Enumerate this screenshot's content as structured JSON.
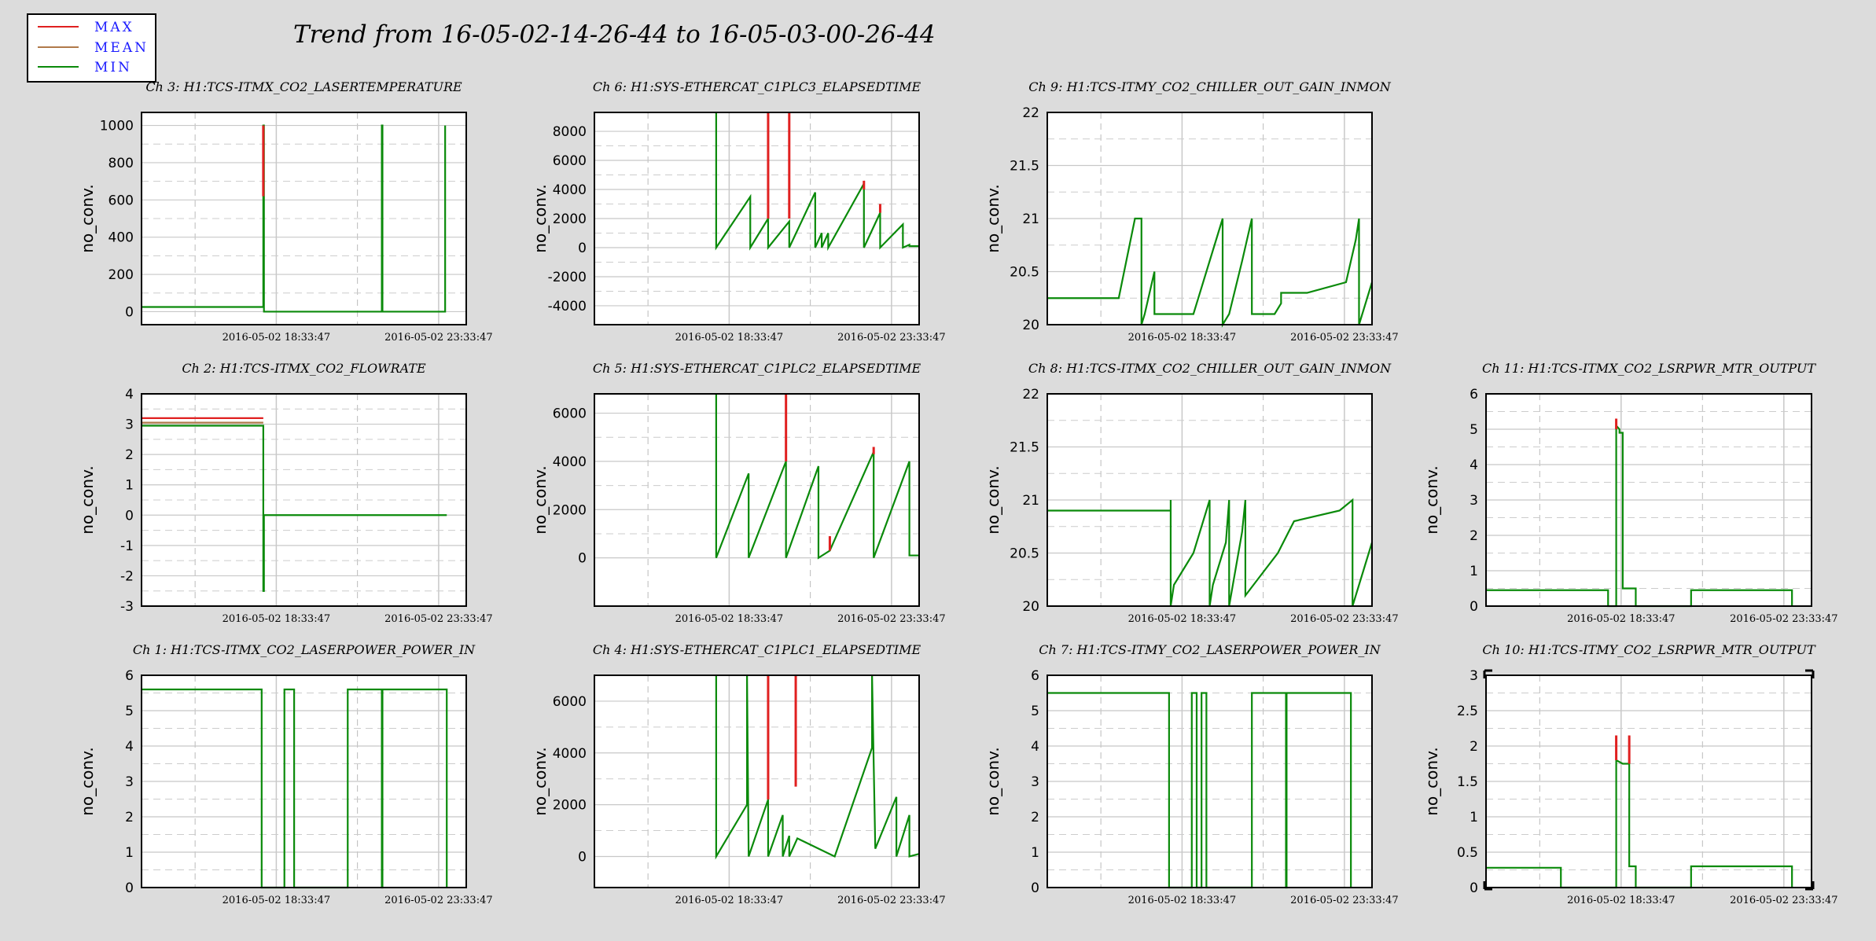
{
  "title": "Trend from 16-05-02-14-26-44 to 16-05-03-00-26-44",
  "legend": [
    {
      "label": "MAX",
      "color": "#e02020"
    },
    {
      "label": "MEAN",
      "color": "#b07a4a"
    },
    {
      "label": "MIN",
      "color": "#0a8a0a"
    }
  ],
  "colors": {
    "max": "#e02020",
    "mean": "#b07a4a",
    "min": "#0a8a0a",
    "grid": "#c8c8c8",
    "background": "#dcdcdc"
  },
  "chart_data": [
    {
      "name": "ch3",
      "type": "line",
      "title": "Ch 3: H1:TCS-ITMX_CO2_LASERTEMPERATURE",
      "ylabel": "no_conv.",
      "xticks": [
        "2016-05-02 18:33:47",
        "2016-05-02 23:33:47"
      ],
      "ylim": [
        -70,
        1070
      ],
      "yticks": [
        0,
        200,
        400,
        600,
        800,
        1000
      ],
      "series": [
        {
          "name": "MIN",
          "x": [
            0,
            0.375,
            0.375,
            0.377,
            0.377,
            0.74,
            0.74,
            0.742,
            0.742,
            0.935,
            0.935
          ],
          "y": [
            25,
            25,
            1000,
            1000,
            0,
            0,
            1000,
            1000,
            0,
            0,
            1000
          ]
        }
      ],
      "spikes": [
        {
          "series": "MAX",
          "x": 0.375,
          "y0": 620,
          "y1": 1000
        }
      ]
    },
    {
      "name": "ch6",
      "type": "line",
      "title": "Ch 6: H1:SYS-ETHERCAT_C1PLC3_ELAPSEDTIME",
      "ylabel": "no_conv.",
      "xticks": [
        "2016-05-02 18:33:47",
        "2016-05-02 23:33:47"
      ],
      "ylim": [
        -5300,
        9300
      ],
      "yticks": [
        -4000,
        -2000,
        0,
        2000,
        4000,
        6000,
        8000
      ],
      "series": [
        {
          "name": "MIN",
          "x": [
            0.375,
            0.375,
            0.375,
            0.48,
            0.48,
            0.535,
            0.535,
            0.6,
            0.6,
            0.68,
            0.68,
            0.7,
            0.7,
            0.72,
            0.72,
            0.83,
            0.83,
            0.88,
            0.88,
            0.95,
            0.95,
            0.97,
            0.97,
            1.0
          ],
          "y": [
            9300,
            0,
            0,
            3500,
            0,
            2000,
            0,
            1800,
            0,
            3800,
            0,
            1000,
            0,
            1000,
            0,
            4400,
            0,
            2400,
            0,
            1600,
            0,
            200,
            100,
            100
          ]
        }
      ],
      "spikes": [
        {
          "series": "MAX",
          "x": 0.535,
          "y0": 2000,
          "y1": 9300
        },
        {
          "series": "MAX",
          "x": 0.6,
          "y0": 2000,
          "y1": 9300
        },
        {
          "series": "MAX",
          "x": 0.83,
          "y0": 4000,
          "y1": 4600
        },
        {
          "series": "MAX",
          "x": 0.88,
          "y0": 2400,
          "y1": 3000
        }
      ]
    },
    {
      "name": "ch9",
      "type": "line",
      "title": "Ch 9: H1:TCS-ITMY_CO2_CHILLER_OUT_GAIN_INMON",
      "ylabel": "no_conv.",
      "xticks": [
        "2016-05-02 18:33:47",
        "2016-05-02 23:33:47"
      ],
      "ylim": [
        20,
        22
      ],
      "yticks": [
        20,
        20.5,
        21,
        21.5,
        22
      ],
      "series": [
        {
          "name": "MIN",
          "x": [
            0,
            0.22,
            0.23,
            0.25,
            0.27,
            0.29,
            0.29,
            0.3,
            0.33,
            0.33,
            0.45,
            0.5,
            0.54,
            0.54,
            0.56,
            0.6,
            0.63,
            0.63,
            0.7,
            0.72,
            0.72,
            0.8,
            0.92,
            0.95,
            0.96,
            0.96,
            0.99,
            1.0
          ],
          "y": [
            20.25,
            20.25,
            20.4,
            20.7,
            21,
            21,
            20,
            20.1,
            20.5,
            20.1,
            20.1,
            20.6,
            21,
            20,
            20.1,
            20.6,
            21,
            20.1,
            20.1,
            20.2,
            20.3,
            20.3,
            20.4,
            20.8,
            21,
            20,
            20.3,
            20.4
          ]
        }
      ],
      "spikes": []
    },
    {
      "name": "ch2",
      "type": "line",
      "title": "Ch 2: H1:TCS-ITMX_CO2_FLOWRATE",
      "ylabel": "no_conv.",
      "xticks": [
        "2016-05-02 18:33:47",
        "2016-05-02 23:33:47"
      ],
      "ylim": [
        -3,
        4
      ],
      "yticks": [
        -3,
        -2,
        -1,
        0,
        1,
        2,
        3,
        4
      ],
      "series": [
        {
          "name": "MAX",
          "x": [
            0,
            0.375
          ],
          "y": [
            3.2,
            3.2
          ]
        },
        {
          "name": "MEAN",
          "x": [
            0,
            0.375
          ],
          "y": [
            3.05,
            3.05
          ]
        },
        {
          "name": "MIN",
          "x": [
            0,
            0.375,
            0.375,
            0.377,
            0.377,
            0.94
          ],
          "y": [
            2.95,
            2.95,
            -2.5,
            -2.5,
            0,
            0
          ]
        }
      ],
      "spikes": []
    },
    {
      "name": "ch5",
      "type": "line",
      "title": "Ch 5: H1:SYS-ETHERCAT_C1PLC2_ELAPSEDTIME",
      "ylabel": "no_conv.",
      "xticks": [
        "2016-05-02 18:33:47",
        "2016-05-02 23:33:47"
      ],
      "ylim": [
        -2000,
        6800
      ],
      "yticks": [
        0,
        2000,
        4000,
        6000
      ],
      "series": [
        {
          "name": "MIN",
          "x": [
            0.375,
            0.375,
            0.375,
            0.475,
            0.475,
            0.59,
            0.59,
            0.69,
            0.69,
            0.725,
            0.725,
            0.86,
            0.86,
            0.97,
            0.97,
            1.0
          ],
          "y": [
            6800,
            0,
            0,
            3500,
            0,
            4000,
            0,
            3800,
            0,
            300,
            300,
            4400,
            0,
            4000,
            100,
            100
          ]
        }
      ],
      "spikes": [
        {
          "series": "MAX",
          "x": 0.59,
          "y0": 4000,
          "y1": 6800
        },
        {
          "series": "MAX",
          "x": 0.725,
          "y0": 300,
          "y1": 900
        },
        {
          "series": "MAX",
          "x": 0.86,
          "y0": 4300,
          "y1": 4600
        }
      ]
    },
    {
      "name": "ch8",
      "type": "line",
      "title": "Ch 8: H1:TCS-ITMX_CO2_CHILLER_OUT_GAIN_INMON",
      "ylabel": "no_conv.",
      "xticks": [
        "2016-05-02 18:33:47",
        "2016-05-02 23:33:47"
      ],
      "ylim": [
        20,
        22
      ],
      "yticks": [
        20,
        20.5,
        21,
        21.5,
        22
      ],
      "series": [
        {
          "name": "MIN",
          "x": [
            0,
            0.38,
            0.38,
            0.38,
            0.39,
            0.41,
            0.45,
            0.5,
            0.5,
            0.51,
            0.55,
            0.56,
            0.56,
            0.6,
            0.61,
            0.61,
            0.66,
            0.71,
            0.76,
            0.9,
            0.94,
            0.94,
            0.98,
            1.0
          ],
          "y": [
            20.9,
            20.9,
            21,
            20,
            20.2,
            20.3,
            20.5,
            21,
            20,
            20.2,
            20.6,
            21,
            20,
            20.7,
            21,
            20.1,
            20.3,
            20.5,
            20.8,
            20.9,
            21,
            20,
            20.4,
            20.6
          ]
        }
      ],
      "spikes": []
    },
    {
      "name": "ch11",
      "type": "line",
      "title": "Ch 11: H1:TCS-ITMX_CO2_LSRPWR_MTR_OUTPUT",
      "ylabel": "no_conv.",
      "xticks": [
        "2016-05-02 18:33:47",
        "2016-05-02 23:33:47"
      ],
      "ylim": [
        0,
        6
      ],
      "yticks": [
        0,
        1,
        2,
        3,
        4,
        5,
        6
      ],
      "series": [
        {
          "name": "MIN",
          "x": [
            0,
            0.375,
            0.375,
            0.4,
            0.4,
            0.41,
            0.41,
            0.42,
            0.42,
            0.46,
            0.46,
            0.63,
            0.63,
            0.94,
            0.94
          ],
          "y": [
            0.45,
            0.45,
            0,
            0,
            5.1,
            5.0,
            4.9,
            4.9,
            0.5,
            0.5,
            0,
            0,
            0.45,
            0.45,
            0
          ]
        }
      ],
      "spikes": [
        {
          "series": "MAX",
          "x": 0.4,
          "y0": 5.0,
          "y1": 5.3
        }
      ]
    },
    {
      "name": "ch1",
      "type": "line",
      "title": "Ch 1: H1:TCS-ITMX_CO2_LASERPOWER_POWER_IN",
      "ylabel": "no_conv.",
      "xticks": [
        "2016-05-02 18:33:47",
        "2016-05-02 23:33:47"
      ],
      "ylim": [
        0,
        6
      ],
      "yticks": [
        0,
        1,
        2,
        3,
        4,
        5,
        6
      ],
      "series": [
        {
          "name": "MIN",
          "x": [
            0,
            0.37,
            0.37,
            0.44,
            0.44,
            0.47,
            0.47,
            0.635,
            0.635,
            0.74,
            0.74,
            0.742,
            0.742,
            0.94,
            0.94
          ],
          "y": [
            5.6,
            5.6,
            0,
            0,
            5.6,
            5.6,
            0,
            0,
            5.6,
            5.6,
            0,
            0,
            5.6,
            5.6,
            0
          ]
        }
      ],
      "spikes": []
    },
    {
      "name": "ch4",
      "type": "line",
      "title": "Ch 4: H1:SYS-ETHERCAT_C1PLC1_ELAPSEDTIME",
      "ylabel": "no_conv.",
      "xticks": [
        "2016-05-02 18:33:47",
        "2016-05-02 23:33:47"
      ],
      "ylim": [
        -1200,
        7000
      ],
      "yticks": [
        0,
        2000,
        4000,
        6000
      ],
      "series": [
        {
          "name": "MIN",
          "x": [
            0.375,
            0.375,
            0.375,
            0.47,
            0.47,
            0.475,
            0.475,
            0.535,
            0.535,
            0.58,
            0.58,
            0.6,
            0.6,
            0.625,
            0.625,
            0.74,
            0.74,
            0.855,
            0.855,
            0.865,
            0.865,
            0.93,
            0.93,
            0.97,
            0.97,
            1.0
          ],
          "y": [
            7000,
            0,
            0,
            2000,
            7000,
            0,
            0,
            2200,
            0,
            1600,
            0,
            800,
            0,
            700,
            700,
            0,
            0,
            4200,
            7000,
            300,
            300,
            2300,
            0,
            1600,
            0,
            100
          ]
        }
      ],
      "spikes": [
        {
          "series": "MAX",
          "x": 0.535,
          "y0": 2200,
          "y1": 7000
        },
        {
          "series": "MAX",
          "x": 0.62,
          "y0": 2700,
          "y1": 7000
        }
      ]
    },
    {
      "name": "ch7",
      "type": "line",
      "title": "Ch 7: H1:TCS-ITMY_CO2_LASERPOWER_POWER_IN",
      "ylabel": "no_conv.",
      "xticks": [
        "2016-05-02 18:33:47",
        "2016-05-02 23:33:47"
      ],
      "ylim": [
        0,
        6
      ],
      "yticks": [
        0,
        1,
        2,
        3,
        4,
        5,
        6
      ],
      "series": [
        {
          "name": "MIN",
          "x": [
            0,
            0.375,
            0.375,
            0.445,
            0.445,
            0.46,
            0.46,
            0.475,
            0.475,
            0.49,
            0.49,
            0.63,
            0.63,
            0.735,
            0.735,
            0.737,
            0.737,
            0.935,
            0.935
          ],
          "y": [
            5.5,
            5.5,
            0,
            0,
            5.5,
            5.5,
            0,
            0,
            5.5,
            5.5,
            0,
            0,
            5.5,
            5.5,
            0,
            0,
            5.5,
            5.5,
            0
          ]
        }
      ],
      "spikes": []
    },
    {
      "name": "ch10",
      "type": "line",
      "title": "Ch 10: H1:TCS-ITMY_CO2_LSRPWR_MTR_OUTPUT",
      "ylabel": "no_conv.",
      "xticks": [
        "2016-05-02 18:33:47",
        "2016-05-02 23:33:47"
      ],
      "ylim": [
        0,
        3
      ],
      "yticks": [
        0,
        0.5,
        1,
        1.5,
        2,
        2.5,
        3
      ],
      "series": [
        {
          "name": "MIN",
          "x": [
            0,
            0.23,
            0.23,
            0.4,
            0.4,
            0.42,
            0.42,
            0.44,
            0.44,
            0.46,
            0.46,
            0.63,
            0.63,
            0.94,
            0.94
          ],
          "y": [
            0.28,
            0.28,
            0,
            0,
            1.8,
            1.75,
            1.75,
            1.75,
            0.3,
            0.3,
            0,
            0,
            0.3,
            0.3,
            0
          ]
        }
      ],
      "spikes": [
        {
          "series": "MAX",
          "x": 0.4,
          "y0": 1.8,
          "y1": 2.15
        },
        {
          "series": "MAX",
          "x": 0.44,
          "y0": 1.75,
          "y1": 2.15
        }
      ]
    }
  ]
}
